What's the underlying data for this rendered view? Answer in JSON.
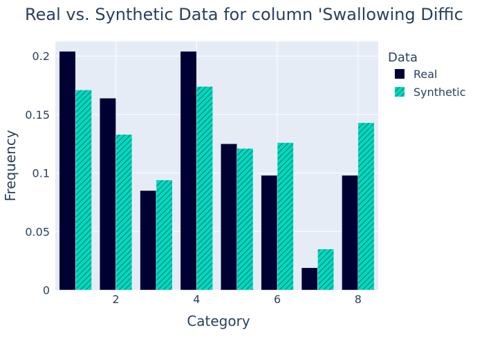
{
  "chart_data": {
    "type": "bar",
    "title": "Real vs. Synthetic Data for column 'Swallowing Diffic",
    "xlabel": "Category",
    "ylabel": "Frequency",
    "x": [
      1,
      2,
      3,
      4,
      5,
      6,
      7,
      8
    ],
    "x_ticks": [
      2,
      4,
      6,
      8
    ],
    "x_tick_labels": [
      "2",
      "4",
      "6",
      "8"
    ],
    "xlim": [
      0.5,
      8.5
    ],
    "ylim": [
      0,
      0.2125
    ],
    "y_ticks": [
      0,
      0.05,
      0.1,
      0.15,
      0.2
    ],
    "y_tick_labels": [
      "0",
      "0.05",
      "0.1",
      "0.15",
      "0.2"
    ],
    "grid": true,
    "legend": {
      "title": "Data",
      "placement": "right"
    },
    "series": [
      {
        "name": "Real",
        "color": "#000033",
        "pattern": "solid",
        "values": [
          0.204,
          0.164,
          0.085,
          0.204,
          0.125,
          0.098,
          0.019,
          0.098
        ]
      },
      {
        "name": "Synthetic",
        "color": "#00D9C0",
        "pattern": "hatched",
        "values": [
          0.171,
          0.133,
          0.094,
          0.174,
          0.121,
          0.126,
          0.035,
          0.143
        ]
      }
    ]
  }
}
